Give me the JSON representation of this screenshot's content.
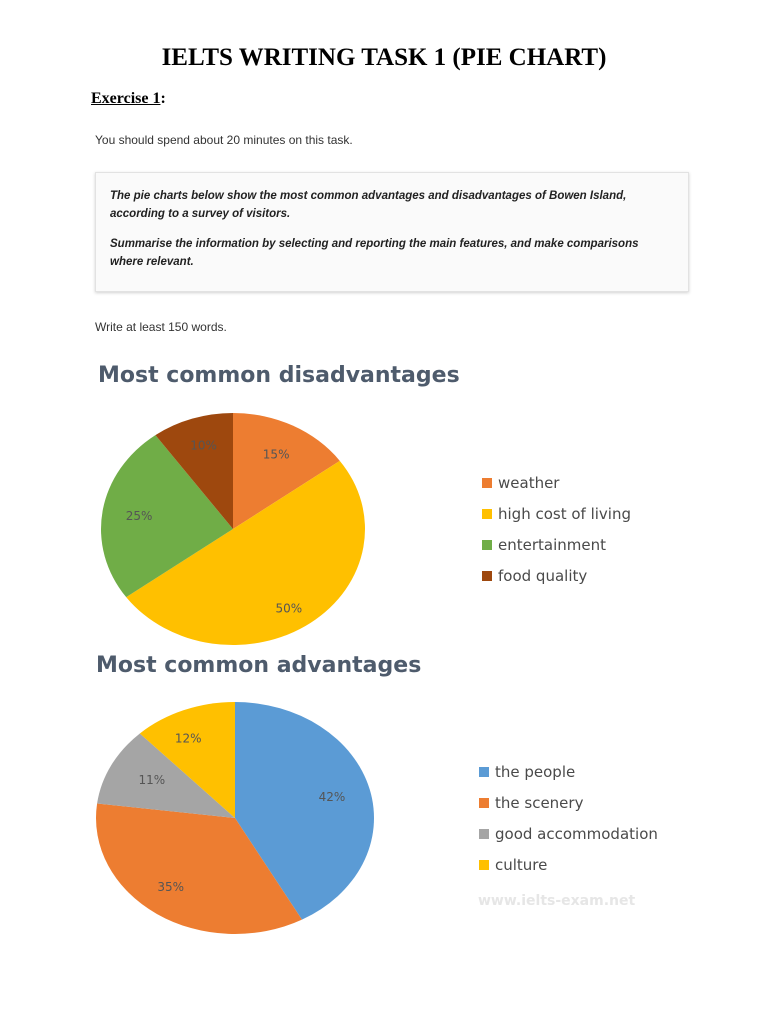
{
  "page": {
    "title": "IELTS WRITING TASK 1 (PIE CHART)",
    "exercise_label": "Exercise 1",
    "exercise_colon": ":",
    "instruction": "You should spend about 20 minutes on this task.",
    "task_paragraph_1": "The pie charts below show the most common advantages and disadvantages of Bowen Island, according to a survey of visitors.",
    "task_paragraph_2": "Summarise the information by selecting and reporting the main features, and make comparisons where relevant.",
    "word_count": "Write at least 150 words.",
    "watermark": "www.ielts-exam.net"
  },
  "chart_data": [
    {
      "type": "pie",
      "title": "Most common disadvantages",
      "categories": [
        "weather",
        "high cost of living",
        "entertainment",
        "food quality"
      ],
      "values": [
        15,
        50,
        25,
        10
      ],
      "labels": [
        "15%",
        "50%",
        "25%",
        "10%"
      ],
      "colors": [
        "#ed7d31",
        "#ffc000",
        "#70ad47",
        "#9e480e"
      ],
      "legend_position": "right"
    },
    {
      "type": "pie",
      "title": "Most common advantages",
      "categories": [
        "the people",
        "the scenery",
        "good accommodation",
        "culture"
      ],
      "values": [
        42,
        35,
        11,
        12
      ],
      "labels": [
        "42%",
        "35%",
        "11%",
        "12%"
      ],
      "colors": [
        "#5b9bd5",
        "#ed7d31",
        "#a5a5a5",
        "#ffc000"
      ],
      "legend_position": "right"
    }
  ]
}
